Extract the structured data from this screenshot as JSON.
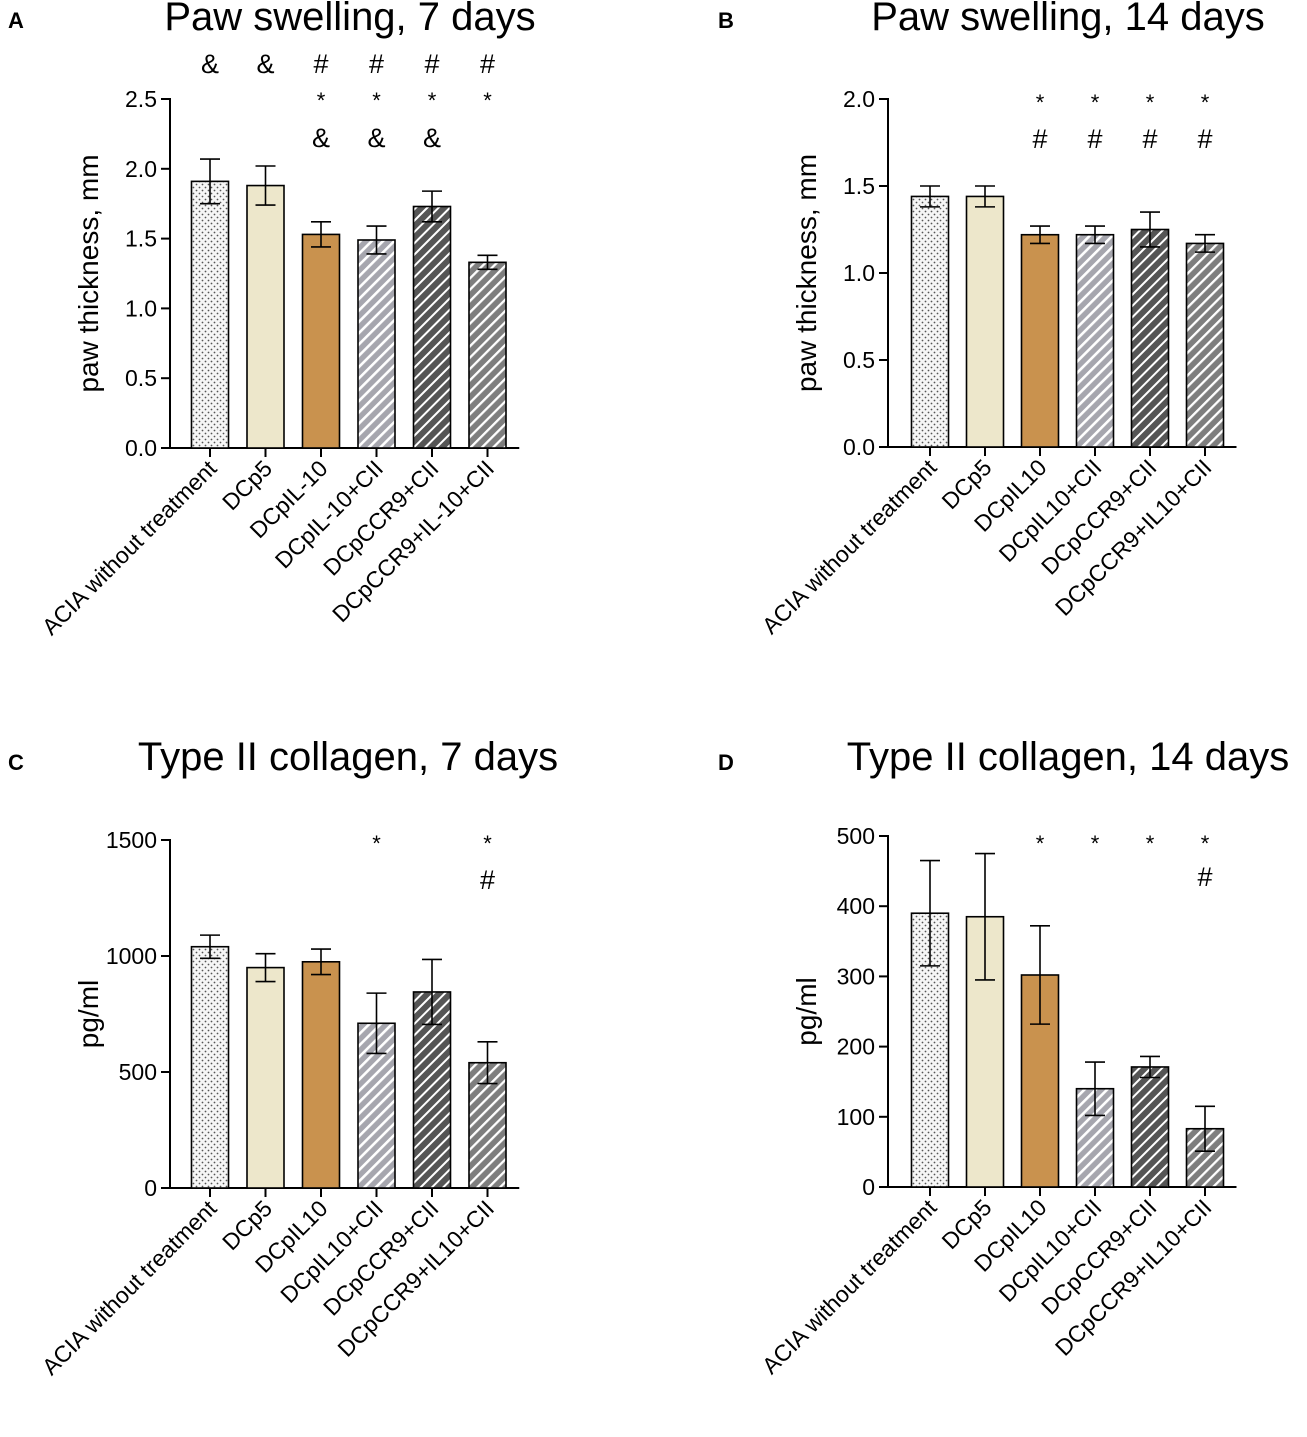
{
  "patterns": {
    "ACIA without treatment": "dots",
    "DCp5": "plain-cream",
    "DCpIL-10": "plain-tan",
    "DCpIL10": "plain-tan",
    "DCpIL-10+CII": "hatch-light",
    "DCpIL10+CII": "hatch-light",
    "DCpCCR9+CII": "hatch-dark",
    "DCpCCR9+IL-10+CII": "hatch-mid",
    "DCpCCR9+IL10+CII": "hatch-mid"
  },
  "colors": {
    "cream": "#EDE7CB",
    "tan": "#C9924E",
    "hatch_light_bg": "#A6A6AE",
    "hatch_dark_bg": "#5A5A5A",
    "hatch_mid_bg": "#7E7E7E",
    "dots_bg": "#F6F6F6"
  },
  "chart_data": [
    {
      "panel": "A",
      "type": "bar",
      "title": "Paw swelling, 7 days",
      "ylabel": "paw thickness, mm",
      "ylim": [
        0,
        2.5
      ],
      "yticks": [
        "0.0",
        "0.5",
        "1.0",
        "1.5",
        "2.0",
        "2.5"
      ],
      "categories": [
        "ACIA without treatment",
        "DCp5",
        "DCpIL-10",
        "DCpIL-10+CII",
        "DCpCCR9+CII",
        "DCpCCR9+IL-10+CII"
      ],
      "values": [
        1.91,
        1.88,
        1.53,
        1.49,
        1.73,
        1.33
      ],
      "errors": [
        0.16,
        0.14,
        0.09,
        0.1,
        0.11,
        0.05
      ],
      "annotations": [
        [
          "&"
        ],
        [
          "&"
        ],
        [
          "#",
          "*",
          "&"
        ],
        [
          "#",
          "*",
          "&"
        ],
        [
          "#",
          "*",
          "&"
        ],
        [
          "#",
          "*"
        ]
      ]
    },
    {
      "panel": "B",
      "type": "bar",
      "title": "Paw swelling, 14 days",
      "ylabel": "paw thickness, mm",
      "ylim": [
        0,
        2.0
      ],
      "yticks": [
        "0.0",
        "0.5",
        "1.0",
        "1.5",
        "2.0"
      ],
      "categories": [
        "ACIA without treatment",
        "DCp5",
        "DCpIL10",
        "DCpIL10+CII",
        "DCpCCR9+CII",
        "DCpCCR9+IL10+CII"
      ],
      "values": [
        1.44,
        1.44,
        1.22,
        1.22,
        1.25,
        1.17
      ],
      "errors": [
        0.06,
        0.06,
        0.05,
        0.05,
        0.1,
        0.05
      ],
      "annotations": [
        [],
        [],
        [
          "*",
          "#"
        ],
        [
          "*",
          "#"
        ],
        [
          "*",
          "#"
        ],
        [
          "*",
          "#"
        ]
      ]
    },
    {
      "panel": "C",
      "type": "bar",
      "title": "Type II collagen, 7 days",
      "ylabel": "pg/ml",
      "ylim": [
        0,
        1500
      ],
      "yticks": [
        "0",
        "500",
        "1000",
        "1500"
      ],
      "categories": [
        "ACIA without treatment",
        "DCp5",
        "DCpIL10",
        "DCpIL10+CII",
        "DCpCCR9+CII",
        "DCpCCR9+IL10+CII"
      ],
      "values": [
        1040,
        950,
        975,
        710,
        845,
        540
      ],
      "errors": [
        50,
        60,
        55,
        130,
        140,
        90
      ],
      "annotations": [
        [],
        [],
        [],
        [
          "*"
        ],
        [],
        [
          "*",
          "#"
        ]
      ]
    },
    {
      "panel": "D",
      "type": "bar",
      "title": "Type II collagen, 14 days",
      "ylabel": "pg/ml",
      "ylim": [
        0,
        500
      ],
      "yticks": [
        "0",
        "100",
        "200",
        "300",
        "400",
        "500"
      ],
      "categories": [
        "ACIA without treatment",
        "DCp5",
        "DCpIL10",
        "DCpIL10+CII",
        "DCpCCR9+CII",
        "DCpCCR9+IL10+CII"
      ],
      "values": [
        390,
        385,
        302,
        140,
        171,
        83
      ],
      "errors": [
        75,
        90,
        70,
        38,
        15,
        32
      ],
      "annotations": [
        [],
        [],
        [
          "*"
        ],
        [
          "*"
        ],
        [
          "*"
        ],
        [
          "*",
          "#"
        ]
      ]
    }
  ]
}
